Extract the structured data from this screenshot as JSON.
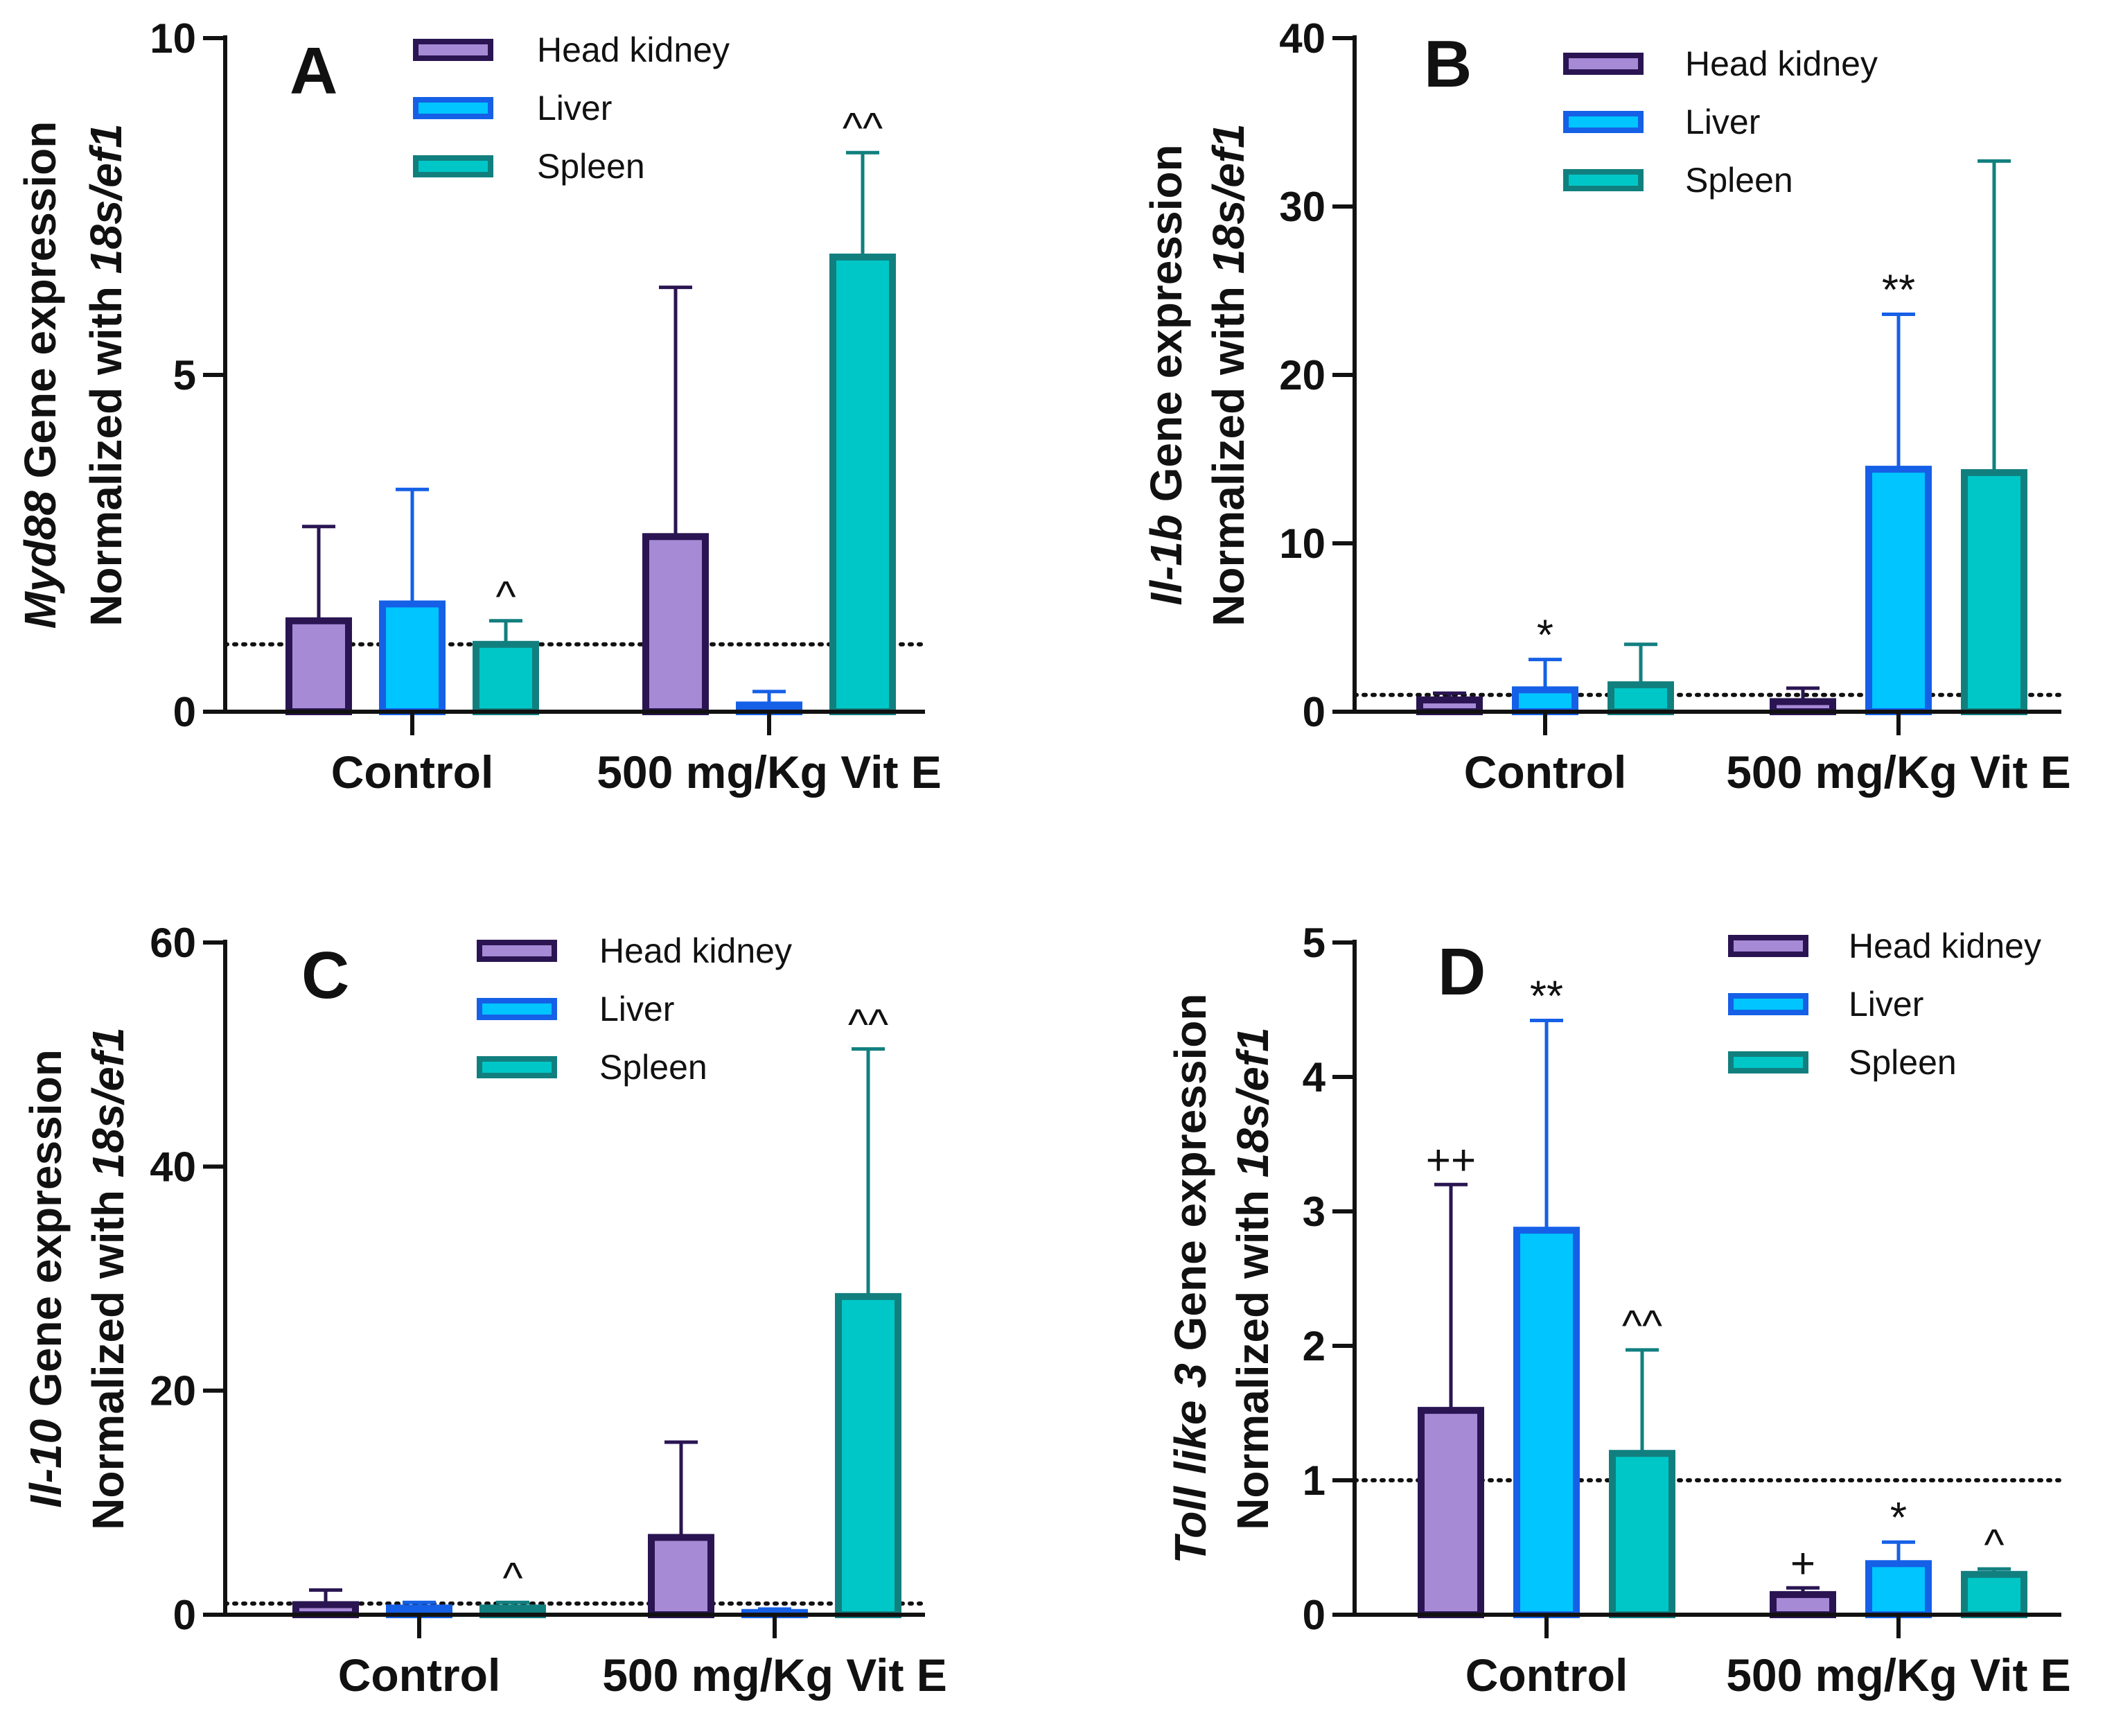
{
  "colors": {
    "head_kidney_fill": "#a68ad6",
    "head_kidney_stroke": "#2a1552",
    "liver_fill": "#00c5ff",
    "liver_stroke": "#1560e6",
    "spleen_fill": "#00c7c7",
    "spleen_stroke": "#127f7f"
  },
  "chart_data": [
    {
      "panel": "A",
      "type": "bar",
      "ylabel_gene": "Myd88",
      "ylabel_suffix": " Gene expression",
      "ylabel_line2_prefix": "Normalized with ",
      "ylabel_line2_italic": "18s/ef1",
      "ylim": [
        0,
        10
      ],
      "yticks": [
        0,
        5,
        10
      ],
      "reference_line": 1,
      "categories": [
        "Control",
        "500 mg/Kg Vit E"
      ],
      "legend": [
        "Head kidney",
        "Liver",
        "Spleen"
      ],
      "series": [
        {
          "name": "Head kidney",
          "values": [
            1.35,
            2.6
          ],
          "errors": [
            2.75,
            6.3
          ],
          "marks": [
            "",
            ""
          ]
        },
        {
          "name": "Liver",
          "values": [
            1.6,
            0.1
          ],
          "errors": [
            3.3,
            0.3
          ],
          "marks": [
            "",
            ""
          ]
        },
        {
          "name": "Spleen",
          "values": [
            1.0,
            6.75
          ],
          "errors": [
            1.35,
            8.3
          ],
          "marks": [
            "^",
            "^^"
          ]
        }
      ]
    },
    {
      "panel": "B",
      "type": "bar",
      "ylabel_gene": "Il-1b",
      "ylabel_suffix": " Gene expression",
      "ylabel_line2_prefix": "Normalized with ",
      "ylabel_line2_italic": "18s/ef1",
      "ylim": [
        0,
        40
      ],
      "yticks": [
        0,
        10,
        20,
        30,
        40
      ],
      "reference_line": 1,
      "categories": [
        "Control",
        "500 mg/Kg Vit E"
      ],
      "legend": [
        "Head kidney",
        "Liver",
        "Spleen"
      ],
      "series": [
        {
          "name": "Head kidney",
          "values": [
            0.7,
            0.6
          ],
          "errors": [
            1.1,
            1.4
          ],
          "marks": [
            "",
            ""
          ]
        },
        {
          "name": "Liver",
          "values": [
            1.3,
            14.4
          ],
          "errors": [
            3.1,
            23.6
          ],
          "marks": [
            "*",
            "**"
          ]
        },
        {
          "name": "Spleen",
          "values": [
            1.6,
            14.2
          ],
          "errors": [
            4.0,
            32.7
          ],
          "marks": [
            "",
            ""
          ]
        }
      ]
    },
    {
      "panel": "C",
      "type": "bar",
      "ylabel_gene": "Il-10",
      "ylabel_suffix": " Gene expression",
      "ylabel_line2_prefix": "Normalized with ",
      "ylabel_line2_italic": "18s/ef1",
      "ylim": [
        0,
        60
      ],
      "yticks": [
        0,
        20,
        40,
        60
      ],
      "reference_line": 1,
      "categories": [
        "Control",
        "500 mg/Kg Vit E"
      ],
      "legend": [
        "Head kidney",
        "Liver",
        "Spleen"
      ],
      "series": [
        {
          "name": "Head kidney",
          "values": [
            0.9,
            6.9
          ],
          "errors": [
            2.2,
            15.4
          ],
          "marks": [
            "",
            ""
          ]
        },
        {
          "name": "Liver",
          "values": [
            0.6,
            0.2
          ],
          "errors": [
            1.1,
            0.5
          ],
          "marks": [
            "",
            ""
          ]
        },
        {
          "name": "Spleen",
          "values": [
            0.6,
            28.4
          ],
          "errors": [
            1.1,
            50.5
          ],
          "marks": [
            "^",
            "^^"
          ]
        }
      ]
    },
    {
      "panel": "D",
      "type": "bar",
      "ylabel_gene": "Toll like 3",
      "ylabel_suffix": " Gene expression",
      "ylabel_line2_prefix": "Normalized with ",
      "ylabel_line2_italic": "18s/ef1",
      "ylim": [
        0,
        5
      ],
      "yticks": [
        0,
        1,
        2,
        3,
        4,
        5
      ],
      "reference_line": 1,
      "categories": [
        "Control",
        "500 mg/Kg Vit E"
      ],
      "legend": [
        "Head kidney",
        "Liver",
        "Spleen"
      ],
      "series": [
        {
          "name": "Head kidney",
          "values": [
            1.52,
            0.15
          ],
          "errors": [
            3.2,
            0.2
          ],
          "marks": [
            "++",
            "+"
          ]
        },
        {
          "name": "Liver",
          "values": [
            2.86,
            0.38
          ],
          "errors": [
            4.42,
            0.54
          ],
          "marks": [
            "**",
            "*"
          ]
        },
        {
          "name": "Spleen",
          "values": [
            1.2,
            0.3
          ],
          "errors": [
            1.97,
            0.34
          ],
          "marks": [
            "^^",
            "^"
          ]
        }
      ]
    }
  ]
}
